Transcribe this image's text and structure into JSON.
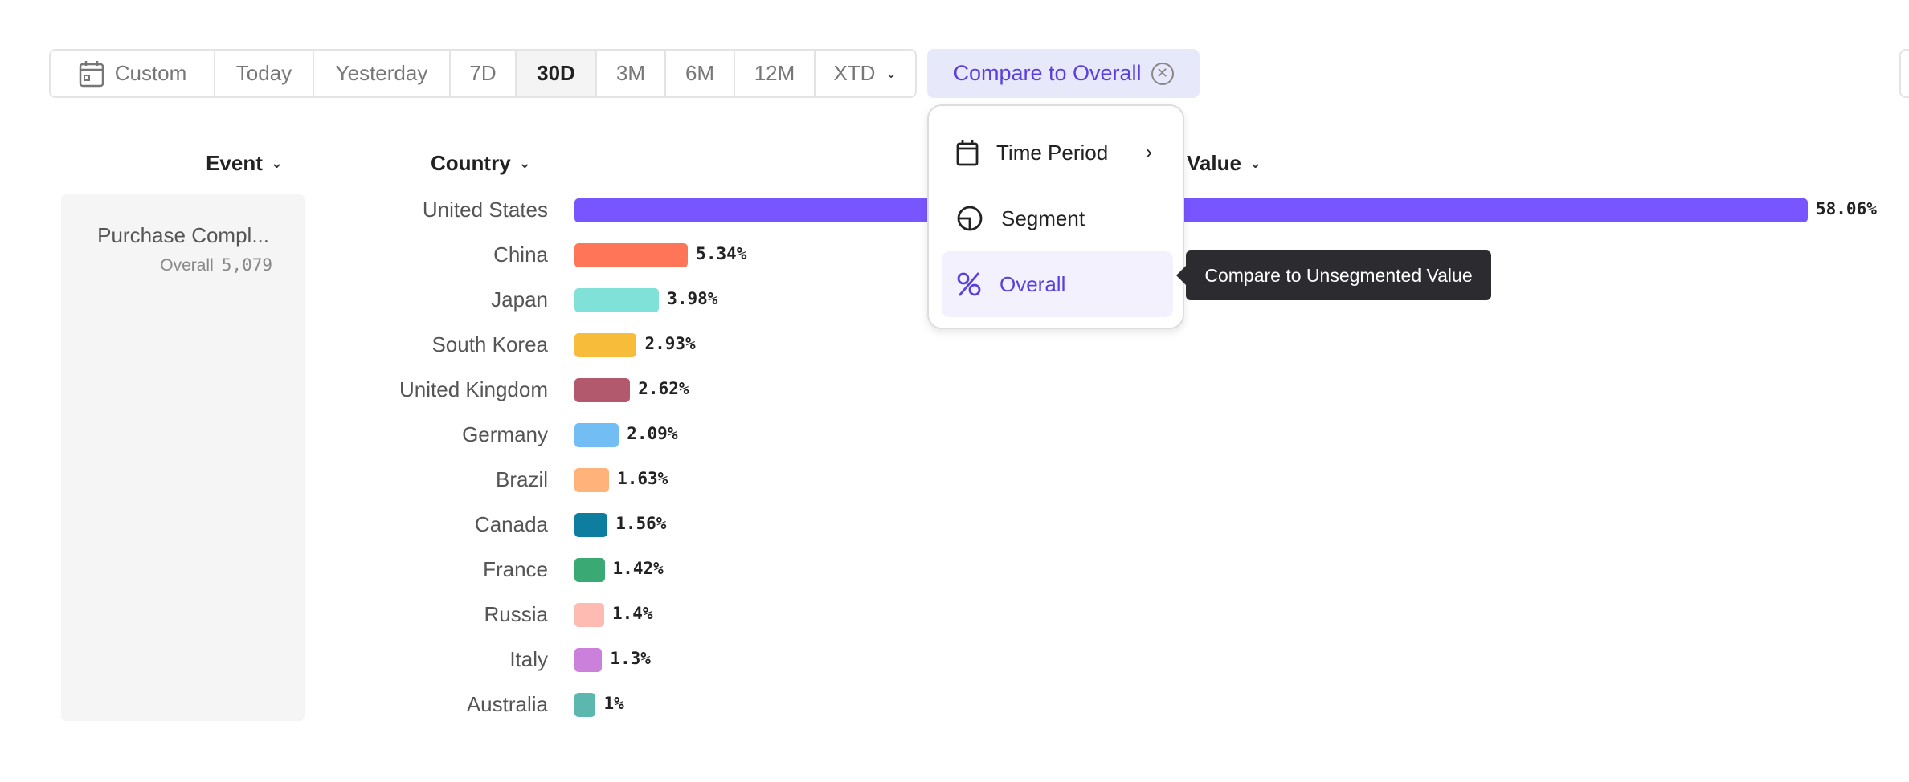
{
  "toolbar": {
    "custom": "Custom",
    "today": "Today",
    "yesterday": "Yesterday",
    "d7": "7D",
    "d30": "30D",
    "m3": "3M",
    "m6": "6M",
    "m12": "12M",
    "xtd": "XTD",
    "active": "30D"
  },
  "compare": {
    "label": "Compare to Overall",
    "close_icon": "close-circle-icon"
  },
  "headers": {
    "event": "Event",
    "country": "Country",
    "value": "Value"
  },
  "event": {
    "name": "Purchase Compl...",
    "sub_label": "Overall",
    "count": "5,079"
  },
  "menu": {
    "items": [
      {
        "label": "Time Period",
        "icon": "calendar-icon",
        "has_submenu": true
      },
      {
        "label": "Segment",
        "icon": "segment-pie-icon"
      },
      {
        "label": "Overall",
        "icon": "percent-icon",
        "selected": true
      }
    ],
    "tooltip": "Compare to Unsegmented Value"
  },
  "rows": [
    {
      "country": "United States",
      "value": 58.06,
      "label": "58.06%",
      "color": "#7856ff"
    },
    {
      "country": "China",
      "value": 5.34,
      "label": "5.34%",
      "color": "#ff7557"
    },
    {
      "country": "Japan",
      "value": 3.98,
      "label": "3.98%",
      "color": "#80e1d9"
    },
    {
      "country": "South Korea",
      "value": 2.93,
      "label": "2.93%",
      "color": "#f8bc3b"
    },
    {
      "country": "United Kingdom",
      "value": 2.62,
      "label": "2.62%",
      "color": "#b2596e"
    },
    {
      "country": "Germany",
      "value": 2.09,
      "label": "2.09%",
      "color": "#72bef4"
    },
    {
      "country": "Brazil",
      "value": 1.63,
      "label": "1.63%",
      "color": "#ffb27a"
    },
    {
      "country": "Canada",
      "value": 1.56,
      "label": "1.56%",
      "color": "#0d7ea0"
    },
    {
      "country": "France",
      "value": 1.42,
      "label": "1.42%",
      "color": "#3ba974"
    },
    {
      "country": "Russia",
      "value": 1.4,
      "label": "1.4%",
      "color": "#febbb2"
    },
    {
      "country": "Italy",
      "value": 1.3,
      "label": "1.3%",
      "color": "#cb80dc"
    },
    {
      "country": "Australia",
      "value": 1,
      "label": "1%",
      "color": "#5cb7af"
    }
  ]
}
